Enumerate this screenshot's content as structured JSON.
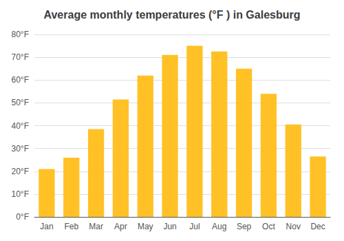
{
  "chart_data": {
    "type": "bar",
    "title": "Average monthly temperatures (°F ) in Galesburg",
    "categories": [
      "Jan",
      "Feb",
      "Mar",
      "Apr",
      "May",
      "Jun",
      "Jul",
      "Aug",
      "Sep",
      "Oct",
      "Nov",
      "Dec"
    ],
    "values": [
      21,
      26,
      38.5,
      51.5,
      62,
      71,
      75,
      72.5,
      65,
      54,
      40.5,
      26.5
    ],
    "color": "#FFC125",
    "ylim": [
      0,
      80
    ],
    "yticks": [
      {
        "value": 0,
        "label": "0°F"
      },
      {
        "value": 10,
        "label": "10°F"
      },
      {
        "value": 20,
        "label": "20°F"
      },
      {
        "value": 30,
        "label": "30°F"
      },
      {
        "value": 40,
        "label": "40°F"
      },
      {
        "value": 50,
        "label": "50°F"
      },
      {
        "value": 60,
        "label": "60°F"
      },
      {
        "value": 70,
        "label": "70°F"
      },
      {
        "value": 80,
        "label": "80°F"
      }
    ],
    "grid": true
  }
}
